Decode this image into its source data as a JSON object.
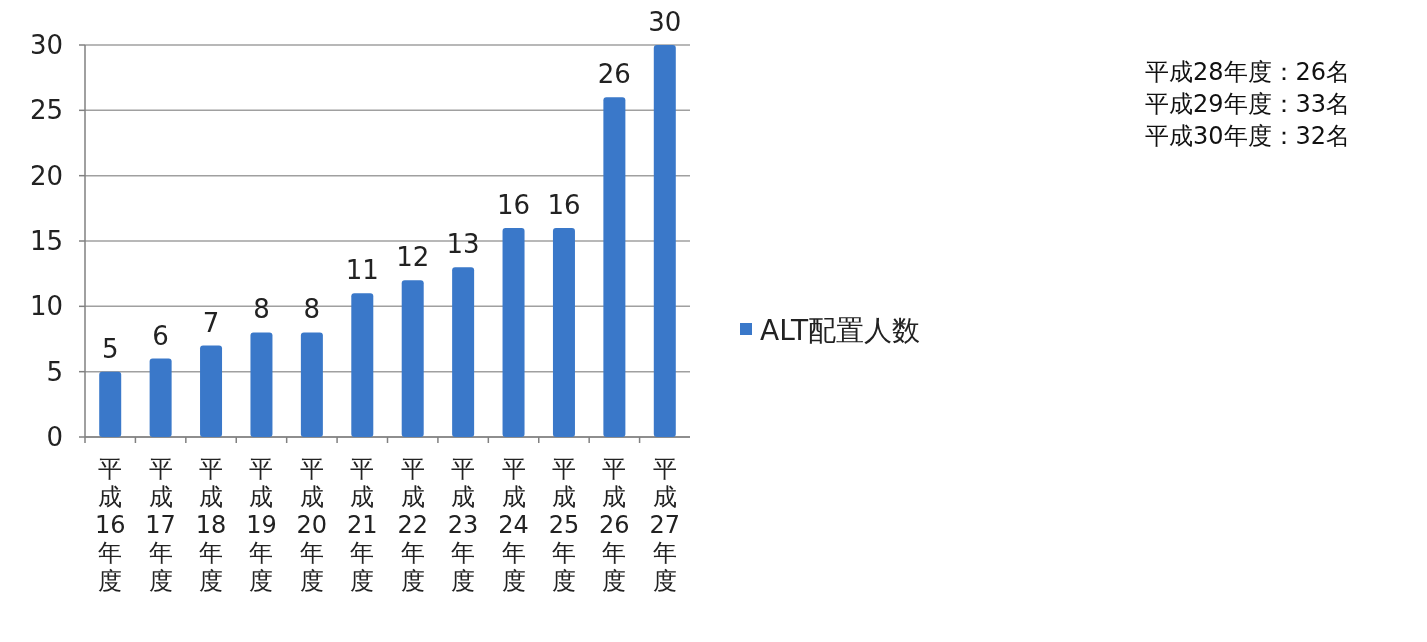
{
  "chart_data": {
    "type": "bar",
    "categories": [
      "平成16年度",
      "平成17年度",
      "平成18年度",
      "平成19年度",
      "平成20年度",
      "平成21年度",
      "平成22年度",
      "平成23年度",
      "平成24年度",
      "平成25年度",
      "平成26年度",
      "平成27年度"
    ],
    "series": [
      {
        "name": "ALT配置人数",
        "color": "#3a78c9",
        "values": [
          5,
          6,
          7,
          8,
          8,
          11,
          12,
          13,
          16,
          16,
          26,
          30
        ]
      }
    ],
    "ylim": [
      0,
      30
    ],
    "yticks": [
      0,
      5,
      10,
      15,
      20,
      25,
      30
    ],
    "grid": "y",
    "legend": "right",
    "data_labels": true,
    "annotations": [
      "平成28年度：26名",
      "平成29年度：33名",
      "平成30年度：32名"
    ]
  }
}
